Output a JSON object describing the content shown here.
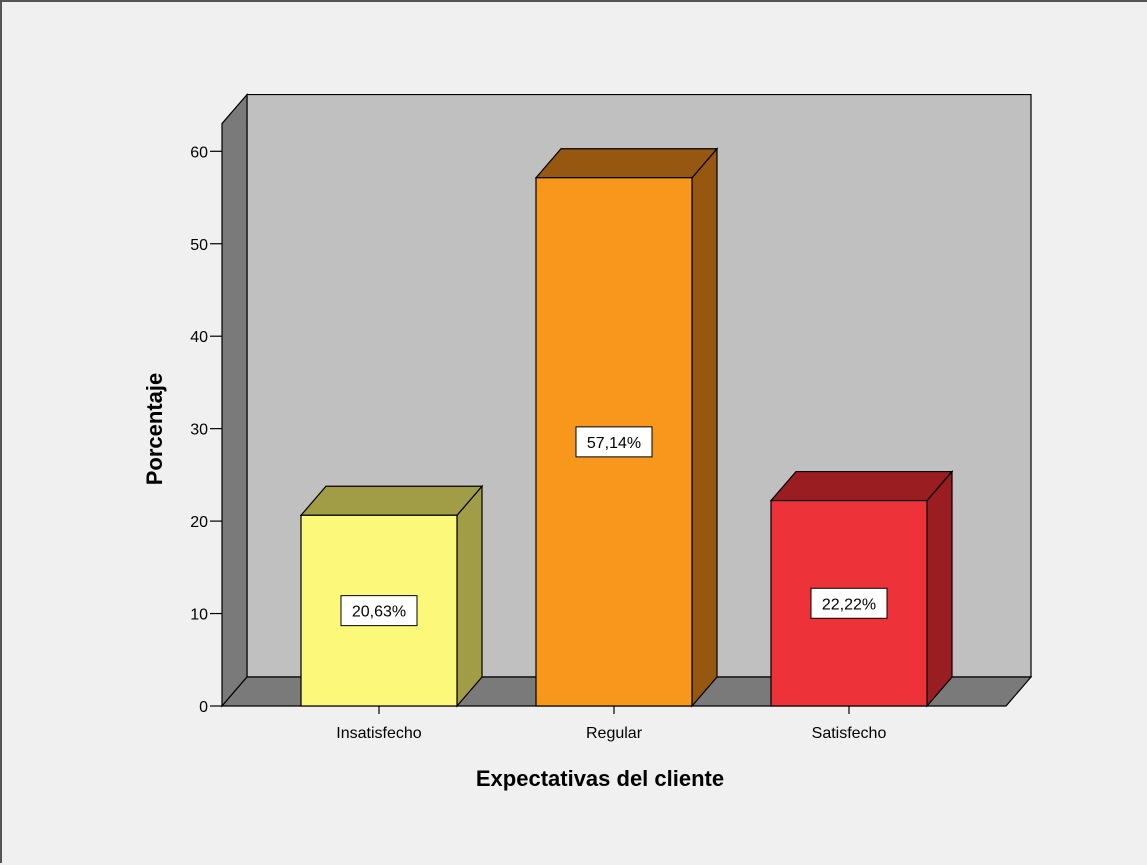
{
  "chart_data": {
    "type": "bar",
    "style": "3d",
    "categories": [
      "Insatisfecho",
      "Regular",
      "Satisfecho"
    ],
    "values": [
      20.63,
      57.14,
      22.22
    ],
    "data_labels": [
      "20,63%",
      "57,14%",
      "22,22%"
    ],
    "yticks": [
      "0",
      "10",
      "20",
      "30",
      "40",
      "50",
      "60"
    ],
    "xlabel": "Expectativas del cliente",
    "ylabel": "Porcentaje",
    "ylim": [
      0,
      63
    ],
    "grid": false,
    "legend": "none",
    "colors": {
      "bars": [
        {
          "front": "#fbf87a",
          "top": "#a19d47",
          "side": "#a19d47"
        },
        {
          "front": "#f7981d",
          "top": "#965710",
          "side": "#965710"
        },
        {
          "front": "#ee3239",
          "top": "#9a1d22",
          "side": "#9a1d22"
        }
      ],
      "back_wall": "#c0c0c0",
      "floor": "#7a7a7a",
      "side_wall": "#7a7a7a",
      "background": "#f0f0f0"
    }
  }
}
